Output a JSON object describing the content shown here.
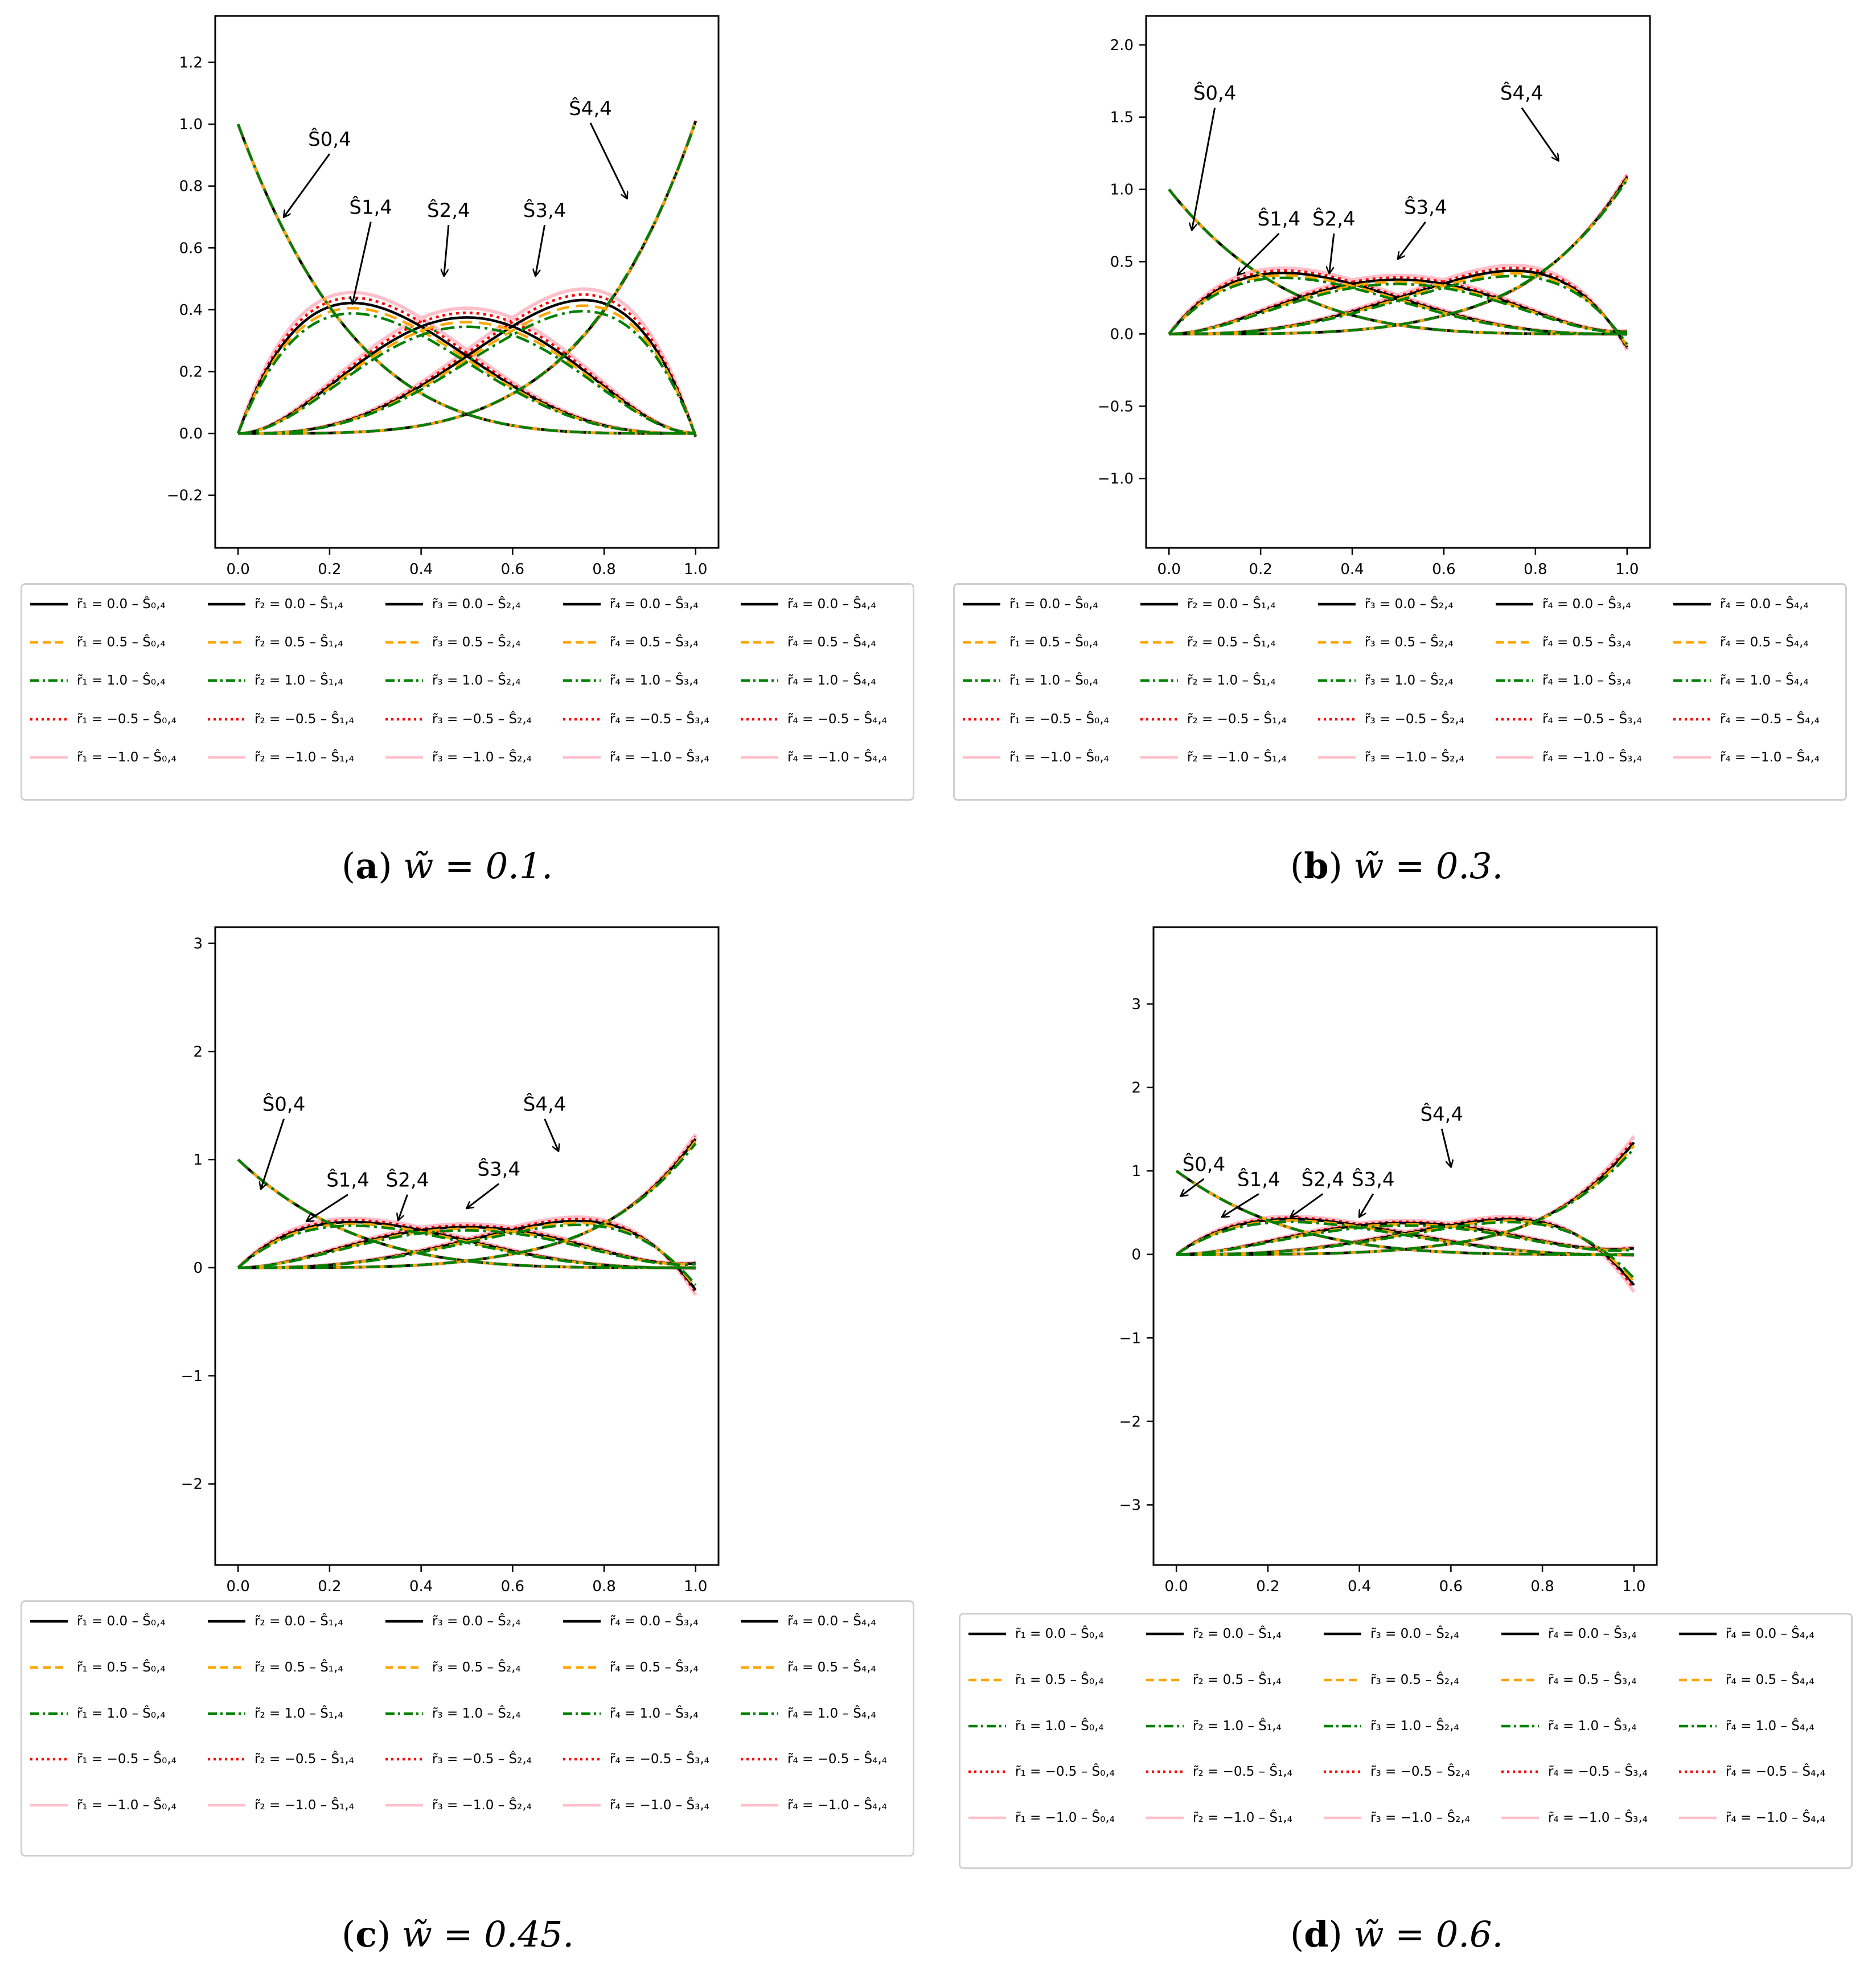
{
  "figure": {
    "panels": [
      {
        "id": "a",
        "caption_letter": "a",
        "caption_text": "w̃ = 0.1."
      },
      {
        "id": "b",
        "caption_letter": "b",
        "caption_text": "w̃ = 0.3."
      },
      {
        "id": "c",
        "caption_letter": "c",
        "caption_text": "w̃ = 0.45."
      },
      {
        "id": "d",
        "caption_letter": "d",
        "caption_text": "w̃ = 0.6."
      }
    ],
    "legend": {
      "rows": [
        [
          "r̃₁ = 0.0 – Ŝ₀,₄",
          "r̃₂ = 0.0 – Ŝ₁,₄",
          "r̃₃ = 0.0 – Ŝ₂,₄",
          "r̃₄ = 0.0 – Ŝ₃,₄",
          "r̃₄ = 0.0 – Ŝ₄,₄"
        ],
        [
          "r̃₁ = 0.5 – Ŝ₀,₄",
          "r̃₂ = 0.5 – Ŝ₁,₄",
          "r̃₃ = 0.5 – Ŝ₂,₄",
          "r̃₄ = 0.5 – Ŝ₃,₄",
          "r̃₄ = 0.5 – Ŝ₄,₄"
        ],
        [
          "r̃₁ = 1.0 – Ŝ₀,₄",
          "r̃₂ = 1.0 – Ŝ₁,₄",
          "r̃₃ = 1.0 – Ŝ₂,₄",
          "r̃₄ = 1.0 – Ŝ₃,₄",
          "r̃₄ = 1.0 – Ŝ₄,₄"
        ],
        [
          "r̃₁ = −0.5 – Ŝ₀,₄",
          "r̃₂ = −0.5 – Ŝ₁,₄",
          "r̃₃ = −0.5 – Ŝ₂,₄",
          "r̃₄ = −0.5 – Ŝ₃,₄",
          "r̃₄ = −0.5 – Ŝ₄,₄"
        ],
        [
          "r̃₁ = −1.0 – Ŝ₀,₄",
          "r̃₂ = −1.0 – Ŝ₁,₄",
          "r̃₃ = −1.0 – Ŝ₂,₄",
          "r̃₄ = −1.0 – Ŝ₃,₄",
          "r̃₄ = −1.0 – Ŝ₄,₄"
        ]
      ]
    }
  },
  "chart_data": [
    {
      "type": "line",
      "panel": "a",
      "title": "",
      "w": 0.1,
      "ylim": [
        -0.37,
        1.35
      ],
      "xlim": [
        -0.05,
        1.05
      ],
      "xticks": [
        "0.0",
        "0.2",
        "0.4",
        "0.6",
        "0.8",
        "1.0"
      ],
      "yticks": [
        "−0.2",
        "0.0",
        "0.2",
        "0.4",
        "0.6",
        "0.8",
        "1.0",
        "1.2"
      ],
      "ytick_values": [
        -0.2,
        0,
        0.2,
        0.4,
        0.6,
        0.8,
        1.0,
        1.2
      ],
      "r_values": [
        0.0,
        0.5,
        1.0,
        -0.5,
        -1.0
      ],
      "series_styles": [
        {
          "r": 0.0,
          "color": "#000000",
          "dash": "none"
        },
        {
          "r": 0.5,
          "color": "#ffa500",
          "dash": "dashed"
        },
        {
          "r": 1.0,
          "color": "#008000",
          "dash": "dashdot"
        },
        {
          "r": -0.5,
          "color": "#ff0000",
          "dash": "dotted"
        },
        {
          "r": -1.0,
          "color": "#ffc0cb",
          "dash": "solid"
        }
      ],
      "annotations": [
        {
          "label": "Ŝ0,4",
          "text_x": 0.2,
          "text_y": 0.93,
          "arrow_x": 0.1,
          "arrow_y": 0.7
        },
        {
          "label": "Ŝ1,4",
          "text_x": 0.29,
          "text_y": 0.71,
          "arrow_x": 0.25,
          "arrow_y": 0.42
        },
        {
          "label": "Ŝ2,4",
          "text_x": 0.46,
          "text_y": 0.7,
          "arrow_x": 0.45,
          "arrow_y": 0.51
        },
        {
          "label": "Ŝ3,4",
          "text_x": 0.67,
          "text_y": 0.7,
          "arrow_x": 0.65,
          "arrow_y": 0.51
        },
        {
          "label": "Ŝ4,4",
          "text_x": 0.77,
          "text_y": 1.03,
          "arrow_x": 0.85,
          "arrow_y": 0.76
        }
      ]
    },
    {
      "type": "line",
      "panel": "b",
      "title": "",
      "w": 0.3,
      "ylim": [
        -1.48,
        2.2
      ],
      "xlim": [
        -0.05,
        1.05
      ],
      "xticks": [
        "0.0",
        "0.2",
        "0.4",
        "0.6",
        "0.8",
        "1.0"
      ],
      "yticks": [
        "−1.0",
        "−0.5",
        "0.0",
        "0.5",
        "1.0",
        "1.5",
        "2.0"
      ],
      "ytick_values": [
        -1.0,
        -0.5,
        0,
        0.5,
        1.0,
        1.5,
        2.0
      ],
      "r_values": [
        0.0,
        0.5,
        1.0,
        -0.5,
        -1.0
      ],
      "series_styles": [
        {
          "r": 0.0,
          "color": "#000000",
          "dash": "none"
        },
        {
          "r": 0.5,
          "color": "#ffa500",
          "dash": "dashed"
        },
        {
          "r": 1.0,
          "color": "#008000",
          "dash": "dashdot"
        },
        {
          "r": -0.5,
          "color": "#ff0000",
          "dash": "dotted"
        },
        {
          "r": -1.0,
          "color": "#ffc0cb",
          "dash": "solid"
        }
      ],
      "annotations": [
        {
          "label": "Ŝ0,4",
          "text_x": 0.1,
          "text_y": 1.62,
          "arrow_x": 0.05,
          "arrow_y": 0.72
        },
        {
          "label": "Ŝ1,4",
          "text_x": 0.24,
          "text_y": 0.75,
          "arrow_x": 0.15,
          "arrow_y": 0.41
        },
        {
          "label": "Ŝ2,4",
          "text_x": 0.36,
          "text_y": 0.75,
          "arrow_x": 0.35,
          "arrow_y": 0.42
        },
        {
          "label": "Ŝ3,4",
          "text_x": 0.56,
          "text_y": 0.83,
          "arrow_x": 0.5,
          "arrow_y": 0.52
        },
        {
          "label": "Ŝ4,4",
          "text_x": 0.77,
          "text_y": 1.62,
          "arrow_x": 0.85,
          "arrow_y": 1.2
        }
      ]
    },
    {
      "type": "line",
      "panel": "c",
      "title": "",
      "w": 0.45,
      "ylim": [
        -2.75,
        3.15
      ],
      "xlim": [
        -0.05,
        1.05
      ],
      "xticks": [
        "0.0",
        "0.2",
        "0.4",
        "0.6",
        "0.8",
        "1.0"
      ],
      "yticks": [
        "−2",
        "−1",
        "0",
        "1",
        "2",
        "3"
      ],
      "ytick_values": [
        -2,
        -1,
        0,
        1,
        2,
        3
      ],
      "r_values": [
        0.0,
        0.5,
        1.0,
        -0.5,
        -1.0
      ],
      "series_styles": [
        {
          "r": 0.0,
          "color": "#000000",
          "dash": "none"
        },
        {
          "r": 0.5,
          "color": "#ffa500",
          "dash": "dashed"
        },
        {
          "r": 1.0,
          "color": "#008000",
          "dash": "dashdot"
        },
        {
          "r": -0.5,
          "color": "#ff0000",
          "dash": "dotted"
        },
        {
          "r": -1.0,
          "color": "#ffc0cb",
          "dash": "solid"
        }
      ],
      "annotations": [
        {
          "label": "Ŝ0,4",
          "text_x": 0.1,
          "text_y": 1.45,
          "arrow_x": 0.05,
          "arrow_y": 0.73
        },
        {
          "label": "Ŝ1,4",
          "text_x": 0.24,
          "text_y": 0.75,
          "arrow_x": 0.15,
          "arrow_y": 0.43
        },
        {
          "label": "Ŝ2,4",
          "text_x": 0.37,
          "text_y": 0.75,
          "arrow_x": 0.35,
          "arrow_y": 0.44
        },
        {
          "label": "Ŝ3,4",
          "text_x": 0.57,
          "text_y": 0.85,
          "arrow_x": 0.5,
          "arrow_y": 0.55
        },
        {
          "label": "Ŝ4,4",
          "text_x": 0.67,
          "text_y": 1.45,
          "arrow_x": 0.7,
          "arrow_y": 1.08
        }
      ]
    },
    {
      "type": "line",
      "panel": "d",
      "title": "",
      "w": 0.6,
      "ylim": [
        -3.72,
        3.92
      ],
      "xlim": [
        -0.05,
        1.05
      ],
      "xticks": [
        "0.0",
        "0.2",
        "0.4",
        "0.6",
        "0.8",
        "1.0"
      ],
      "yticks": [
        "−3",
        "−2",
        "−1",
        "0",
        "1",
        "2",
        "3"
      ],
      "ytick_values": [
        -3,
        -2,
        -1,
        0,
        1,
        2,
        3
      ],
      "r_values": [
        0.0,
        0.5,
        1.0,
        -0.5,
        -1.0
      ],
      "series_styles": [
        {
          "r": 0.0,
          "color": "#000000",
          "dash": "none"
        },
        {
          "r": 0.5,
          "color": "#ffa500",
          "dash": "dashed"
        },
        {
          "r": 1.0,
          "color": "#008000",
          "dash": "dashdot"
        },
        {
          "r": -0.5,
          "color": "#ff0000",
          "dash": "dotted"
        },
        {
          "r": -1.0,
          "color": "#ffc0cb",
          "dash": "solid"
        }
      ],
      "annotations": [
        {
          "label": "Ŝ0,4",
          "text_x": 0.06,
          "text_y": 1.0,
          "arrow_x": 0.01,
          "arrow_y": 0.7
        },
        {
          "label": "Ŝ1,4",
          "text_x": 0.18,
          "text_y": 0.82,
          "arrow_x": 0.1,
          "arrow_y": 0.45
        },
        {
          "label": "Ŝ2,4",
          "text_x": 0.32,
          "text_y": 0.82,
          "arrow_x": 0.25,
          "arrow_y": 0.45
        },
        {
          "label": "Ŝ3,4",
          "text_x": 0.43,
          "text_y": 0.82,
          "arrow_x": 0.4,
          "arrow_y": 0.45
        },
        {
          "label": "Ŝ4,4",
          "text_x": 0.58,
          "text_y": 1.6,
          "arrow_x": 0.6,
          "arrow_y": 1.05
        }
      ]
    }
  ]
}
